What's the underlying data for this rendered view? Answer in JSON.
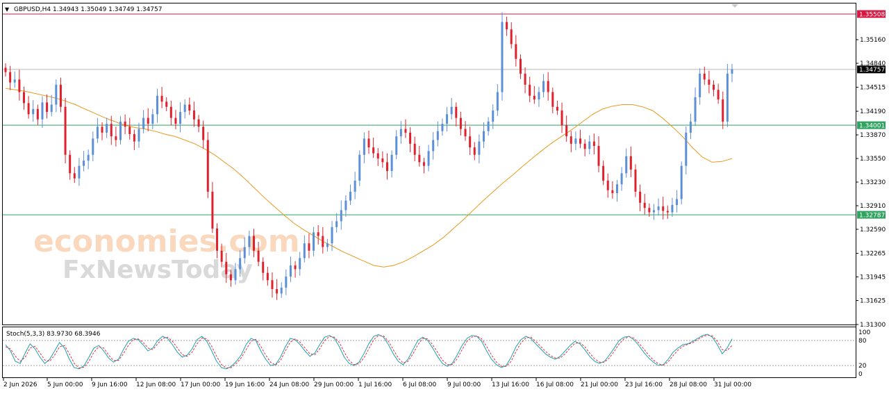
{
  "header": {
    "menu_glyph": "▼",
    "text": "GBPUSD,H4  1.34943 1.35049 1.34749 1.34757"
  },
  "stoch": {
    "label": "Stoch(5,3,3) 83.9730 68.3946",
    "levels": [
      80,
      20
    ],
    "ticks": [
      "100",
      "80",
      "20",
      "0"
    ],
    "main_line_color": "#1a9fb0",
    "signal_line_color": "#e0303a"
  },
  "watermark": {
    "line1": "economies.com",
    "line2": "FxNewsToday"
  },
  "colors": {
    "bull": "#5b8fd8",
    "bear": "#e0212d",
    "ma": "#e8991e",
    "resistance": "#d9163f",
    "support": "#2fa35f",
    "current_price": "#000000"
  },
  "chart_data": {
    "type": "candlestick",
    "symbol": "GBPUSD",
    "timeframe": "H4",
    "ohlc_header": {
      "open": 1.34943,
      "high": 1.35049,
      "low": 1.34749,
      "close": 1.34757
    },
    "ylim": [
      1.313,
      1.3566
    ],
    "y_ticks": [
      "1.35160",
      "1.34840",
      "1.34515",
      "1.34190",
      "1.33870",
      "1.33550",
      "1.33230",
      "1.32910",
      "1.32590",
      "1.32265",
      "1.31945",
      "1.31625",
      "1.31300"
    ],
    "x_ticks": [
      "2 Jun 2026",
      "5 Jun 00:00",
      "9 Jun 16:00",
      "12 Jun 08:00",
      "17 Jun 00:00",
      "19 Jun 16:00",
      "24 Jun 08:00",
      "29 Jun 00:00",
      "1 Jul 16:00",
      "6 Jul 08:00",
      "9 Jul 00:00",
      "13 Jul 16:00",
      "16 Jul 08:00",
      "21 Jul 00:00",
      "23 Jul 16:00",
      "28 Jul 08:00",
      "31 Jul 00:00"
    ],
    "horizontal_levels": [
      {
        "label": "1.35508",
        "value": 1.35508,
        "role": "resistance"
      },
      {
        "label": "1.34757",
        "value": 1.34757,
        "role": "current_price"
      },
      {
        "label": "1.34001",
        "value": 1.34001,
        "role": "support"
      },
      {
        "label": "1.32787",
        "value": 1.32787,
        "role": "support"
      }
    ],
    "close_path": [
      1.3472,
      1.3458,
      1.3462,
      1.3445,
      1.343,
      1.3415,
      1.3422,
      1.3408,
      1.3431,
      1.3418,
      1.3428,
      1.3455,
      1.3425,
      1.336,
      1.3335,
      1.3328,
      1.3345,
      1.3352,
      1.336,
      1.3382,
      1.3398,
      1.339,
      1.3402,
      1.3385,
      1.338,
      1.3405,
      1.3398,
      1.3388,
      1.3378,
      1.3395,
      1.341,
      1.3402,
      1.3415,
      1.344,
      1.3432,
      1.3425,
      1.341,
      1.3402,
      1.3418,
      1.3428,
      1.342,
      1.3408,
      1.3398,
      1.338,
      1.331,
      1.326,
      1.323,
      1.3215,
      1.3198,
      1.319,
      1.3205,
      1.322,
      1.3235,
      1.325,
      1.323,
      1.3215,
      1.32,
      1.319,
      1.3178,
      1.3172,
      1.318,
      1.3195,
      1.321,
      1.3205,
      1.322,
      1.324,
      1.323,
      1.3255,
      1.325,
      1.3235,
      1.324,
      1.3262,
      1.327,
      1.3285,
      1.3298,
      1.331,
      1.3325,
      1.336,
      1.3382,
      1.337,
      1.3362,
      1.3355,
      1.335,
      1.3338,
      1.336,
      1.3385,
      1.3395,
      1.339,
      1.3375,
      1.336,
      1.335,
      1.3345,
      1.3365,
      1.338,
      1.3392,
      1.3402,
      1.3415,
      1.3425,
      1.341,
      1.3395,
      1.3385,
      1.337,
      1.336,
      1.3378,
      1.3392,
      1.3405,
      1.342,
      1.3445,
      1.354,
      1.353,
      1.351,
      1.349,
      1.347,
      1.3455,
      1.344,
      1.3435,
      1.3445,
      1.346,
      1.3445,
      1.3425,
      1.342,
      1.34,
      1.3385,
      1.3375,
      1.3382,
      1.3375,
      1.3368,
      1.3378,
      1.3372,
      1.3345,
      1.3325,
      1.3312,
      1.3308,
      1.332,
      1.3335,
      1.3358,
      1.334,
      1.331,
      1.3295,
      1.3288,
      1.3282,
      1.3285,
      1.329,
      1.3284,
      1.3282,
      1.3292,
      1.33,
      1.3345,
      1.339,
      1.3405,
      1.3438,
      1.347,
      1.3462,
      1.3455,
      1.3448,
      1.3435,
      1.3405,
      1.347,
      1.3476
    ],
    "ma_path": [
      1.345,
      1.3448,
      1.3446,
      1.3443,
      1.344,
      1.3437,
      1.3433,
      1.3428,
      1.3422,
      1.3416,
      1.341,
      1.3405,
      1.34,
      1.3397,
      1.3395,
      1.3392,
      1.3388,
      1.3385,
      1.338,
      1.3375,
      1.3368,
      1.336,
      1.335,
      1.334,
      1.3328,
      1.3315,
      1.3302,
      1.329,
      1.3278,
      1.3267,
      1.3258,
      1.325,
      1.3242,
      1.3235,
      1.3228,
      1.3222,
      1.3216,
      1.321,
      1.3208,
      1.321,
      1.3215,
      1.3222,
      1.323,
      1.3238,
      1.3248,
      1.326,
      1.3272,
      1.3285,
      1.3298,
      1.331,
      1.3322,
      1.3333,
      1.3345,
      1.3356,
      1.3367,
      1.3377,
      1.3386,
      1.3395,
      1.3405,
      1.3415,
      1.3422,
      1.3426,
      1.3428,
      1.3428,
      1.3425,
      1.342,
      1.341,
      1.3398,
      1.3385,
      1.337,
      1.3357,
      1.335,
      1.3351,
      1.3355
    ],
    "stoch_main": [
      70,
      55,
      30,
      25,
      50,
      72,
      60,
      40,
      25,
      35,
      55,
      75,
      62,
      35,
      15,
      12,
      20,
      40,
      62,
      68,
      55,
      38,
      28,
      35,
      58,
      78,
      85,
      82,
      70,
      55,
      62,
      80,
      90,
      85,
      70,
      52,
      40,
      45,
      60,
      82,
      90,
      78,
      55,
      30,
      15,
      12,
      18,
      30,
      45,
      70,
      85,
      80,
      55,
      35,
      20,
      22,
      40,
      65,
      85,
      82,
      70,
      55,
      42,
      50,
      70,
      88,
      92,
      85,
      65,
      40,
      25,
      20,
      28,
      48,
      72,
      90,
      94,
      88,
      70,
      48,
      30,
      22,
      35,
      58,
      80,
      88,
      80,
      62,
      42,
      25,
      18,
      25,
      45,
      68,
      85,
      92,
      90,
      78,
      55,
      35,
      22,
      15,
      20,
      40,
      65,
      82,
      90,
      85,
      72,
      60,
      48,
      40,
      35,
      42,
      55,
      68,
      78,
      72,
      58,
      42,
      30,
      25,
      30,
      45,
      62,
      80,
      88,
      90,
      82,
      68,
      52,
      38,
      28,
      20,
      22,
      35,
      52,
      62,
      70,
      72,
      78,
      85,
      92,
      95,
      88,
      70,
      48,
      62,
      84
    ],
    "stoch_signal": [
      65,
      60,
      42,
      30,
      40,
      62,
      66,
      50,
      33,
      30,
      45,
      65,
      68,
      48,
      25,
      14,
      16,
      30,
      52,
      65,
      62,
      45,
      32,
      32,
      48,
      68,
      82,
      84,
      76,
      62,
      58,
      72,
      85,
      88,
      78,
      62,
      46,
      42,
      52,
      72,
      86,
      84,
      66,
      42,
      22,
      14,
      15,
      25,
      38,
      58,
      78,
      83,
      66,
      45,
      28,
      21,
      32,
      55,
      76,
      84,
      76,
      62,
      48,
      46,
      60,
      80,
      90,
      88,
      75,
      52,
      32,
      22,
      24,
      38,
      60,
      82,
      92,
      91,
      78,
      58,
      38,
      26,
      30,
      48,
      70,
      85,
      84,
      70,
      52,
      33,
      22,
      22,
      36,
      58,
      78,
      88,
      91,
      84,
      66,
      45,
      28,
      18,
      18,
      30,
      54,
      74,
      86,
      88,
      78,
      66,
      54,
      44,
      38,
      38,
      48,
      62,
      73,
      75,
      65,
      50,
      36,
      28,
      28,
      38,
      54,
      72,
      84,
      89,
      86,
      74,
      60,
      45,
      33,
      24,
      21,
      29,
      44,
      57,
      66,
      71,
      75,
      82,
      89,
      93,
      91,
      78,
      58,
      56,
      68
    ]
  }
}
